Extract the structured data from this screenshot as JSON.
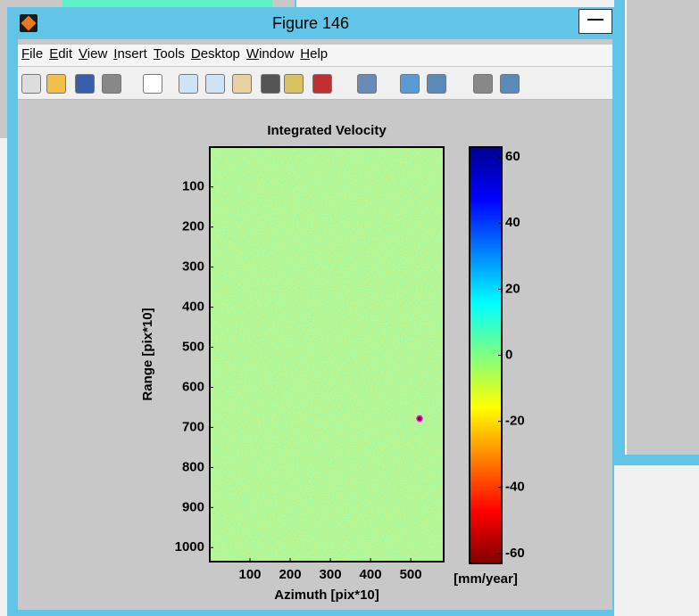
{
  "window": {
    "title": "Figure 146",
    "menu": [
      "File",
      "Edit",
      "View",
      "Insert",
      "Tools",
      "Desktop",
      "Window",
      "Help"
    ]
  },
  "chart_data": {
    "type": "image",
    "title": "Integrated Velocity",
    "x_label": "Azimuth [pix*10]",
    "y_label": "Range [pix*10]",
    "xlim": [
      0,
      582
    ],
    "ylim": [
      0.5,
      1035
    ],
    "y_inverted": true,
    "xticks": [
      100,
      200,
      300,
      400,
      500
    ],
    "yticks": [
      100,
      200,
      300,
      400,
      500,
      600,
      700,
      800,
      900,
      1000
    ],
    "colorbar": {
      "label": "[mm/year]",
      "clim": [
        -63,
        63
      ],
      "ticks": [
        -60,
        -40,
        -20,
        0,
        20,
        40,
        60
      ]
    },
    "markers": [
      {
        "x": 522,
        "y": 678,
        "color": "#ff00ff"
      }
    ]
  }
}
